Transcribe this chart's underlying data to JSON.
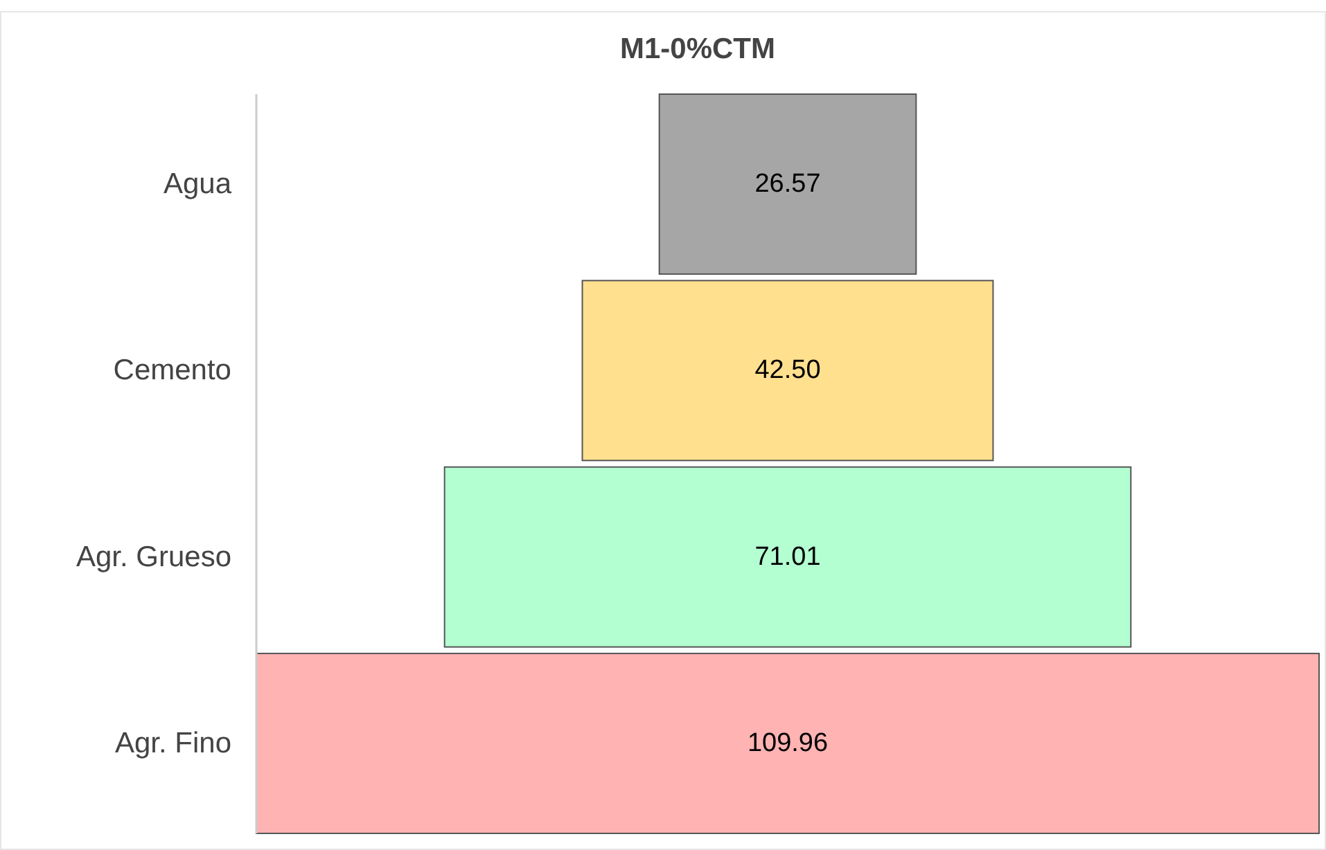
{
  "chart_data": {
    "type": "other",
    "title": "M1-0%CTM",
    "categories": [
      "Agua",
      "Cemento",
      "Agr. Grueso",
      "Agr. Fino"
    ],
    "values": [
      26.57,
      42.5,
      71.01,
      109.96
    ],
    "value_labels": [
      "26.57",
      "42.50",
      "71.01",
      "109.96"
    ],
    "colors": [
      "#a6a6a6",
      "#ffe08f",
      "#b3ffd1",
      "#ffb3b3"
    ]
  }
}
